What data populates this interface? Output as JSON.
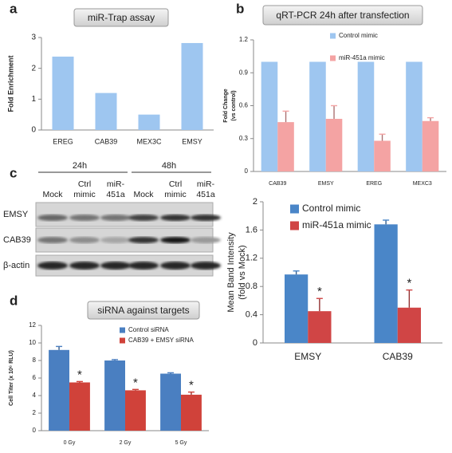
{
  "chart_data": [
    {
      "panel": "a",
      "type": "bar",
      "title": "miR-Trap assay",
      "ylabel": "Fold Enrichment",
      "categories": [
        "EREG",
        "CAB39",
        "MEX3C",
        "EMSY"
      ],
      "values": [
        2.38,
        1.2,
        0.5,
        2.82
      ],
      "color": "#9ec6f0",
      "ylim": [
        0,
        3
      ],
      "yticks": [
        0,
        1,
        2,
        3
      ]
    },
    {
      "panel": "b",
      "type": "bar",
      "title": "qRT-PCR 24h after transfection",
      "ylabel": [
        "Fold Change",
        "(vs control)"
      ],
      "categories": [
        "CAB39",
        "EMSY",
        "EREG",
        "MEXC3"
      ],
      "series": [
        {
          "name": "Control mimic",
          "color": "#9ec6f0",
          "values": [
            1,
            1,
            1,
            1
          ]
        },
        {
          "name": "miR-451a mimic",
          "color": "#f4a3a3",
          "values": [
            0.45,
            0.48,
            0.28,
            0.46
          ],
          "errors": [
            0.1,
            0.12,
            0.06,
            0.03
          ]
        }
      ],
      "ylim": [
        0,
        1.2
      ],
      "yticks": [
        0,
        0.3,
        0.6,
        0.9,
        1.2
      ]
    },
    {
      "panel": "c",
      "type": "bar",
      "ylabel": [
        "Mean Band Intensity",
        "(fold vs Mock)"
      ],
      "categories": [
        "EMSY",
        "CAB39"
      ],
      "series": [
        {
          "name": "Control mimic",
          "color": "#4a86c8",
          "values": [
            0.97,
            1.68
          ],
          "errors": [
            0.05,
            0.06
          ]
        },
        {
          "name": "miR-451a mimic",
          "color": "#d04545",
          "values": [
            0.45,
            0.5
          ],
          "errors": [
            0.18,
            0.25
          ]
        }
      ],
      "annotations": [
        "*",
        "*"
      ],
      "ylim": [
        0,
        2
      ],
      "yticks": [
        0,
        0.4,
        0.8,
        1.2,
        1.6,
        2
      ]
    },
    {
      "panel": "d",
      "type": "bar",
      "title": "siRNA against targets",
      "ylabel": "Cell Titer (x 10⁶ RLU)",
      "categories": [
        "0 Gy",
        "2 Gy",
        "5 Gy"
      ],
      "series": [
        {
          "name": "Control  siRNA",
          "color": "#4a7fc1",
          "values": [
            9.2,
            8.0,
            6.5
          ],
          "errors": [
            0.4,
            0.1,
            0.1
          ]
        },
        {
          "name": "CAB39 + EMSY siRNA",
          "color": "#d0423a",
          "values": [
            5.5,
            4.6,
            4.1
          ],
          "errors": [
            0.1,
            0.1,
            0.3
          ]
        }
      ],
      "annotations": [
        "*",
        "*",
        "*"
      ],
      "ylim": [
        0,
        12
      ],
      "yticks": [
        0,
        2,
        4,
        6,
        8,
        10,
        12
      ]
    }
  ],
  "blot": {
    "time_labels": [
      "24h",
      "48h"
    ],
    "lanes": [
      [
        "Mock"
      ],
      [
        "Ctrl",
        "mimic"
      ],
      [
        "miR-",
        "451a"
      ],
      [
        "Mock"
      ],
      [
        "Ctrl",
        "mimic"
      ],
      [
        "miR-",
        "451a"
      ]
    ],
    "rows": [
      "EMSY",
      "CAB39",
      "β-actin"
    ]
  }
}
